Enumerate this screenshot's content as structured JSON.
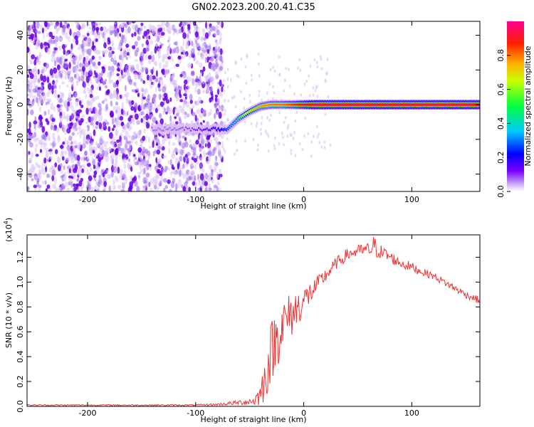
{
  "title": "GN02.2023.200.20.41.C35",
  "chart_data": [
    {
      "type": "heatmap",
      "xlabel": "Height of straight line (km)",
      "ylabel": "Frequency (Hz)",
      "xlim": [
        -256,
        163
      ],
      "ylim": [
        -50,
        48
      ],
      "x_ticks": [
        -200,
        -100,
        0,
        100
      ],
      "y_ticks": [
        -40,
        -20,
        0,
        20,
        40
      ],
      "colorbar": {
        "label": "Normalized spectral amplitude",
        "range": [
          0,
          1
        ],
        "ticks": [
          0.0,
          0.2,
          0.4,
          0.6,
          0.8
        ],
        "colormap": [
          "#ffffff",
          "#c9a4f0",
          "#7a00ff",
          "#0000ff",
          "#00c8ff",
          "#00ff40",
          "#ffff00",
          "#ff8000",
          "#ff0000",
          "#ff0080"
        ]
      },
      "ridge": {
        "x": [
          -140,
          -120,
          -100,
          -90,
          -80,
          -70,
          -60,
          -50,
          -40,
          -30,
          -20,
          -10,
          0,
          10,
          50,
          100,
          163
        ],
        "frequency": [
          -14,
          -14,
          -14,
          -14,
          -14,
          -14,
          -8,
          -4,
          -1,
          0,
          0,
          0,
          0,
          0,
          0,
          0,
          0
        ],
        "amplitude": [
          0.15,
          0.15,
          0.2,
          0.25,
          0.3,
          0.4,
          0.55,
          0.7,
          0.75,
          0.8,
          0.8,
          0.85,
          0.9,
          0.95,
          0.95,
          0.95,
          0.95
        ]
      },
      "noise_region_x": [
        -256,
        -75
      ]
    },
    {
      "type": "line",
      "xlabel": "Height of straight line (km)",
      "ylabel": "SNR (10 * v/v)",
      "yscale_label": "(x10",
      "yscale_exp": "4",
      "yscale_close": ")",
      "xlim": [
        -256,
        163
      ],
      "ylim": [
        0,
        1.38
      ],
      "x_ticks": [
        -200,
        -100,
        0,
        100
      ],
      "y_ticks": [
        0.0,
        0.2,
        0.4,
        0.6,
        0.8,
        1.0,
        1.2
      ],
      "color": "#ee3333",
      "series": [
        {
          "x": [
            -256,
            -200,
            -150,
            -100,
            -80,
            -60,
            -50,
            -45,
            -40,
            -35,
            -30,
            -25,
            -20,
            -15,
            -10,
            -5,
            0,
            10,
            20,
            30,
            40,
            50,
            60,
            65,
            70,
            80,
            90,
            100,
            110,
            120,
            130,
            140,
            150,
            163
          ],
          "values": [
            0.01,
            0.01,
            0.01,
            0.01,
            0.015,
            0.03,
            0.04,
            0.05,
            0.1,
            0.25,
            0.45,
            0.55,
            0.65,
            0.7,
            0.75,
            0.8,
            0.85,
            0.95,
            1.05,
            1.15,
            1.22,
            1.25,
            1.26,
            1.28,
            1.25,
            1.2,
            1.15,
            1.12,
            1.08,
            1.05,
            1.0,
            0.95,
            0.9,
            0.85
          ],
          "noise": [
            0.006,
            0.006,
            0.006,
            0.006,
            0.01,
            0.02,
            0.03,
            0.05,
            0.1,
            0.2,
            0.25,
            0.25,
            0.22,
            0.2,
            0.18,
            0.15,
            0.12,
            0.08,
            0.06,
            0.05,
            0.05,
            0.05,
            0.06,
            0.1,
            0.06,
            0.05,
            0.04,
            0.04,
            0.03,
            0.03,
            0.03,
            0.03,
            0.03,
            0.03
          ]
        }
      ]
    }
  ]
}
